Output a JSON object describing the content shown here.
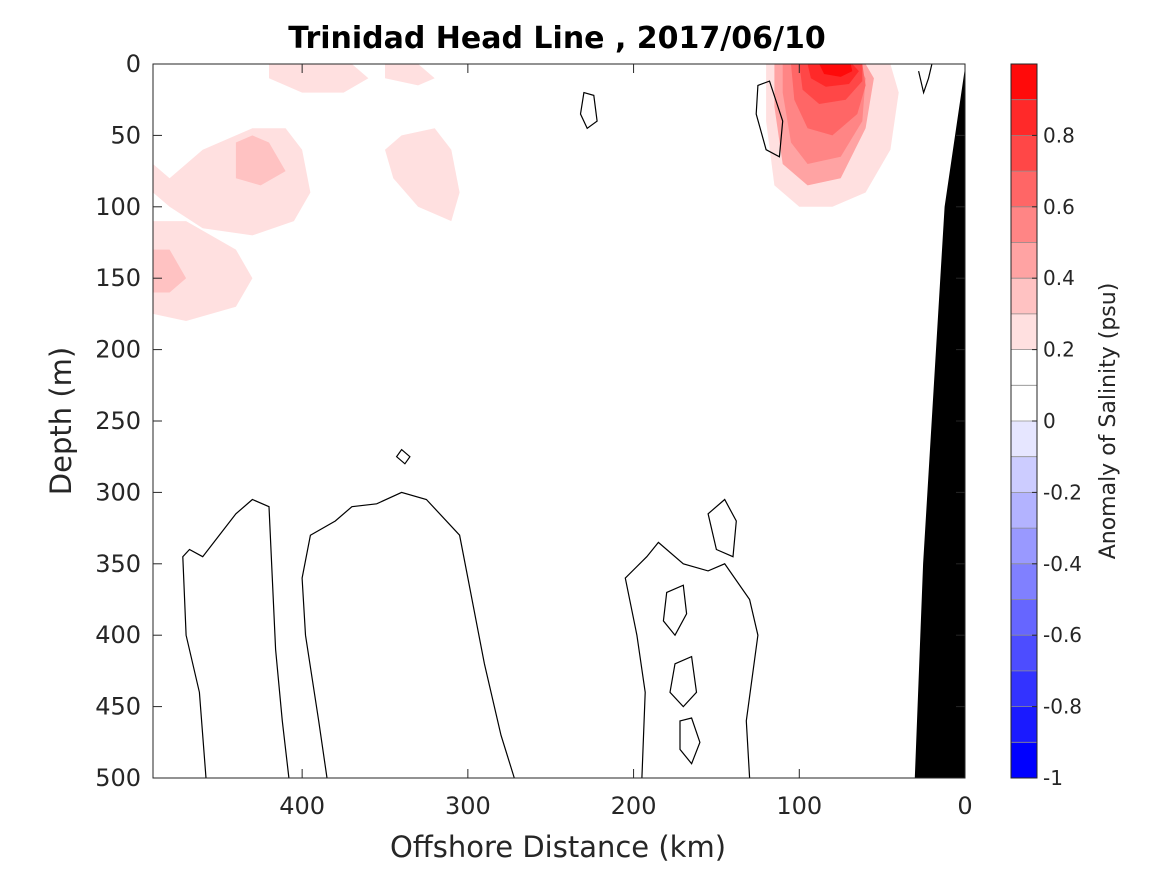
{
  "chart_data": {
    "type": "heatmap",
    "title": "Trinidad Head Line , 2017/06/10",
    "xlabel": "Offshore Distance (km)",
    "ylabel": "Depth (m)",
    "xlim": [
      490,
      0
    ],
    "ylim": [
      0,
      500
    ],
    "xticks": [
      400,
      300,
      200,
      100,
      0
    ],
    "yticks": [
      0,
      50,
      100,
      150,
      200,
      250,
      300,
      350,
      400,
      450,
      500
    ],
    "grid": false,
    "colorbar": {
      "label": "Anomaly of Salinity (psu)",
      "range": [
        -1,
        1
      ],
      "tick_labels": [
        "0.8",
        "0.6",
        "0.4",
        "0.2",
        "0",
        "-0.2",
        "-0.4",
        "-0.6",
        "-0.8",
        "-1"
      ],
      "tick_values": [
        0.8,
        0.6,
        0.4,
        0.2,
        0,
        -0.2,
        -0.4,
        -0.6,
        -0.8,
        -1
      ],
      "levels": [
        -1,
        -0.9,
        -0.8,
        -0.7,
        -0.6,
        -0.5,
        -0.4,
        -0.3,
        -0.2,
        -0.1,
        0,
        0.1,
        0.2,
        0.3,
        0.4,
        0.5,
        0.6,
        0.7,
        0.8,
        0.9,
        1
      ],
      "colors": [
        "#0000ff",
        "#1a1aff",
        "#3333ff",
        "#4d4dff",
        "#6666ff",
        "#8080ff",
        "#9999ff",
        "#b3b3ff",
        "#ccccff",
        "#e6e6ff",
        "#ffffff",
        "#ffffff",
        "#ffe0e0",
        "#ffc2c2",
        "#ffa3a3",
        "#ff8585",
        "#ff6666",
        "#ff4747",
        "#ff2929",
        "#ff0a0a"
      ]
    },
    "regions": [
      {
        "name": "surface-band-0.1",
        "anomaly": 0.1,
        "x": [
          490,
          470,
          440,
          400,
          370,
          330,
          290,
          250,
          230,
          190,
          150,
          120,
          100,
          80,
          40,
          20,
          20,
          40,
          90,
          150,
          200,
          250,
          300,
          350,
          400,
          450,
          490
        ],
        "y": [
          215,
          210,
          215,
          205,
          195,
          180,
          170,
          175,
          150,
          140,
          140,
          150,
          140,
          120,
          110,
          100,
          0,
          0,
          0,
          0,
          0,
          0,
          0,
          0,
          0,
          0,
          0
        ]
      },
      {
        "name": "bay-1",
        "anomaly": 0,
        "x": [
          280,
          260,
          240,
          220,
          205,
          200,
          215,
          235,
          260,
          280
        ],
        "y": [
          15,
          10,
          12,
          25,
          45,
          60,
          70,
          60,
          45,
          25
        ]
      },
      {
        "name": "bay-2",
        "anomaly": 0,
        "x": [
          110,
          100,
          90,
          80,
          80,
          90,
          105,
          115
        ],
        "y": [
          40,
          30,
          30,
          50,
          80,
          95,
          85,
          60
        ]
      },
      {
        "name": "bay-3",
        "anomaly": 0,
        "x": [
          38,
          34,
          30,
          28,
          30,
          36,
          40
        ],
        "y": [
          5,
          4,
          20,
          60,
          100,
          110,
          60
        ]
      },
      {
        "name": "patch-0.2-nw",
        "anomaly": 0.2,
        "x": [
          490,
          480,
          460,
          430,
          410,
          400,
          395,
          405,
          430,
          460,
          480,
          490
        ],
        "y": [
          70,
          80,
          60,
          45,
          45,
          60,
          90,
          110,
          120,
          115,
          100,
          90
        ]
      },
      {
        "name": "patch-0.2-top-a",
        "anomaly": 0.2,
        "x": [
          420,
          390,
          370,
          360,
          375,
          400,
          420
        ],
        "y": [
          0,
          0,
          0,
          10,
          20,
          20,
          10
        ]
      },
      {
        "name": "patch-0.2-top-b",
        "anomaly": 0.2,
        "x": [
          350,
          330,
          320,
          330,
          350
        ],
        "y": [
          0,
          0,
          10,
          15,
          10
        ]
      },
      {
        "name": "patch-0.2-mid",
        "anomaly": 0.2,
        "x": [
          340,
          320,
          310,
          305,
          310,
          330,
          345,
          350
        ],
        "y": [
          50,
          45,
          60,
          90,
          110,
          100,
          80,
          60
        ]
      },
      {
        "name": "patch-0.2-sw",
        "anomaly": 0.2,
        "x": [
          490,
          470,
          440,
          430,
          440,
          470,
          490
        ],
        "y": [
          110,
          110,
          130,
          150,
          170,
          180,
          175
        ]
      },
      {
        "name": "patch-0.2-coastal",
        "anomaly": 0.2,
        "x": [
          120,
          110,
          100,
          85,
          70,
          60,
          45,
          40,
          45,
          60,
          80,
          100,
          115,
          120
        ],
        "y": [
          0,
          0,
          0,
          0,
          0,
          0,
          0,
          20,
          60,
          90,
          100,
          100,
          85,
          40
        ]
      },
      {
        "name": "patch-0.3-a",
        "anomaly": 0.3,
        "x": [
          440,
          430,
          420,
          410,
          425,
          440
        ],
        "y": [
          55,
          50,
          55,
          75,
          85,
          80
        ]
      },
      {
        "name": "patch-0.3-b",
        "anomaly": 0.3,
        "x": [
          490,
          480,
          470,
          480,
          490
        ],
        "y": [
          130,
          130,
          150,
          160,
          160
        ]
      },
      {
        "name": "patch-0.4",
        "anomaly": 0.4,
        "x": [
          115,
          100,
          85,
          70,
          60,
          55,
          60,
          75,
          95,
          110,
          115
        ],
        "y": [
          0,
          0,
          0,
          0,
          0,
          10,
          45,
          80,
          85,
          70,
          30
        ]
      },
      {
        "name": "patch-0.5",
        "anomaly": 0.5,
        "x": [
          110,
          95,
          80,
          65,
          60,
          62,
          75,
          95,
          105,
          110
        ],
        "y": [
          0,
          0,
          0,
          0,
          10,
          40,
          65,
          70,
          55,
          20
        ]
      },
      {
        "name": "patch-0.6",
        "anomaly": 0.6,
        "x": [
          105,
          90,
          75,
          62,
          60,
          65,
          80,
          95,
          103
        ],
        "y": [
          0,
          0,
          0,
          0,
          15,
          35,
          50,
          45,
          25
        ]
      },
      {
        "name": "patch-0.7",
        "anomaly": 0.7,
        "x": [
          100,
          85,
          70,
          62,
          62,
          72,
          88,
          98
        ],
        "y": [
          0,
          0,
          0,
          0,
          12,
          25,
          28,
          18
        ]
      },
      {
        "name": "patch-0.8",
        "anomaly": 0.8,
        "x": [
          95,
          80,
          68,
          64,
          70,
          84,
          93
        ],
        "y": [
          0,
          0,
          0,
          5,
          14,
          16,
          10
        ]
      },
      {
        "name": "patch-0.9",
        "anomaly": 0.9,
        "x": [
          88,
          78,
          69,
          68,
          75,
          85
        ],
        "y": [
          0,
          0,
          0,
          5,
          9,
          7
        ]
      }
    ],
    "contours": [
      {
        "name": "zero-contour-1",
        "closed": false,
        "x": [
          458,
          462,
          470,
          472,
          468,
          460,
          450,
          440,
          430,
          420,
          418,
          416,
          412,
          408
        ],
        "y": [
          500,
          440,
          400,
          345,
          340,
          345,
          330,
          315,
          305,
          310,
          360,
          410,
          460,
          500
        ]
      },
      {
        "name": "zero-contour-2",
        "closed": false,
        "x": [
          385,
          390,
          398,
          400,
          395,
          380,
          370,
          355,
          340,
          325,
          305,
          300,
          290,
          280,
          272
        ],
        "y": [
          500,
          460,
          400,
          360,
          330,
          320,
          310,
          308,
          300,
          305,
          330,
          360,
          420,
          470,
          500
        ]
      },
      {
        "name": "zero-contour-3",
        "closed": false,
        "x": [
          195,
          193,
          198,
          205,
          192,
          185,
          170,
          155,
          145,
          130,
          125,
          132,
          130
        ],
        "y": [
          500,
          440,
          400,
          360,
          345,
          335,
          350,
          355,
          350,
          375,
          400,
          460,
          500
        ]
      },
      {
        "name": "zero-contour-4",
        "closed": true,
        "x": [
          155,
          145,
          138,
          140,
          150
        ],
        "y": [
          315,
          305,
          320,
          345,
          340
        ]
      },
      {
        "name": "zero-contour-5",
        "closed": true,
        "x": [
          180,
          170,
          168,
          175,
          182
        ],
        "y": [
          370,
          365,
          385,
          400,
          390
        ]
      },
      {
        "name": "zero-contour-6",
        "closed": true,
        "x": [
          175,
          165,
          162,
          170,
          178
        ],
        "y": [
          420,
          415,
          440,
          450,
          440
        ]
      },
      {
        "name": "zero-contour-7",
        "closed": true,
        "x": [
          172,
          165,
          160,
          165,
          172
        ],
        "y": [
          460,
          458,
          475,
          490,
          480
        ]
      },
      {
        "name": "zero-contour-8",
        "closed": true,
        "x": [
          340,
          335,
          338,
          343
        ],
        "y": [
          270,
          275,
          280,
          275
        ]
      },
      {
        "name": "zero-contour-9",
        "closed": true,
        "x": [
          230,
          224,
          222,
          228,
          232
        ],
        "y": [
          20,
          22,
          40,
          45,
          35
        ]
      },
      {
        "name": "zero-contour-10",
        "closed": true,
        "x": [
          125,
          118,
          110,
          112,
          120,
          126
        ],
        "y": [
          15,
          12,
          40,
          65,
          60,
          35
        ]
      },
      {
        "name": "zero-contour-11",
        "closed": false,
        "x": [
          20,
          22,
          25,
          28
        ],
        "y": [
          0,
          10,
          20,
          5
        ]
      }
    ],
    "bathymetry": {
      "x": [
        0,
        0,
        12,
        25,
        30
      ],
      "y": [
        500,
        5,
        100,
        350,
        500
      ]
    }
  }
}
